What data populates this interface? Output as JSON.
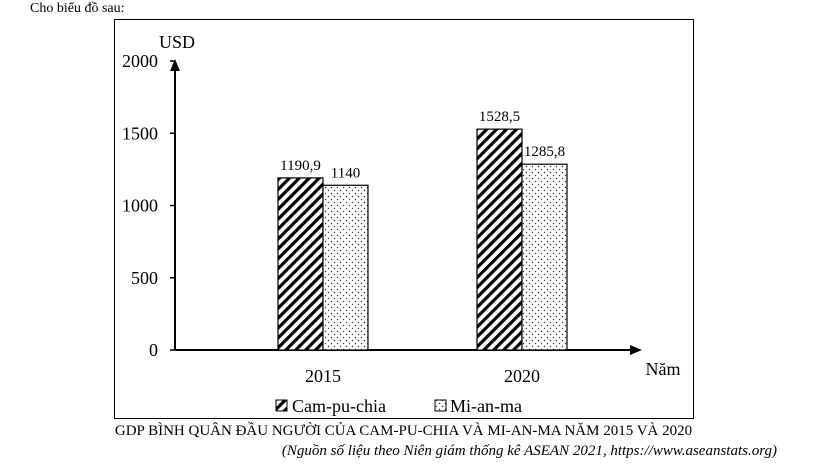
{
  "intro": "Cho biểu đồ sau:",
  "chart_data": {
    "type": "bar",
    "ylabel": "USD",
    "xlabel": "Năm",
    "categories": [
      "2015",
      "2020"
    ],
    "yticks": [
      0,
      500,
      1000,
      1500,
      2000
    ],
    "ylim": [
      0,
      2000
    ],
    "grid": false,
    "legend_position": "bottom",
    "series": [
      {
        "name": "Cam-pu-chia",
        "values": [
          1190.9,
          1528.5
        ],
        "labels": [
          "1190,9",
          "1528,5"
        ],
        "pattern": "diagonal-hatch"
      },
      {
        "name": "Mi-an-ma",
        "values": [
          1140,
          1285.8
        ],
        "labels": [
          "1140",
          "1285,8"
        ],
        "pattern": "dots"
      }
    ],
    "title": "GDP BÌNH QUÂN ĐẦU NGƯỜI CỦA CAM-PU-CHIA VÀ MI-AN-MA NĂM 2015 VÀ 2020",
    "source": "(Nguồn số liệu theo Niên giám thống kê ASEAN 2021, https://www.aseanstats.org)"
  }
}
